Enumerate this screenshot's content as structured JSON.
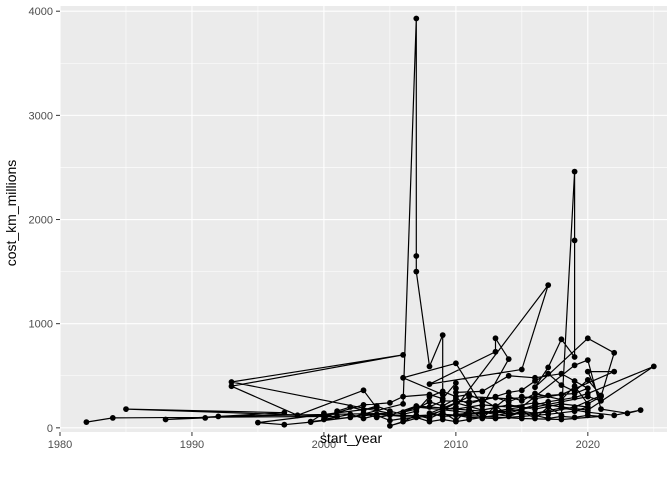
{
  "chart_data": {
    "type": "line",
    "theme": "ggplot2 grey panel with white gridlines",
    "xlabel": "start_year",
    "ylabel": "cost_km_millions",
    "xlim": [
      1980,
      2026
    ],
    "ylim": [
      -40,
      4050
    ],
    "x_ticks": [
      "1980",
      "1990",
      "2000",
      "2010",
      "2020"
    ],
    "y_ticks": [
      "0",
      "1000",
      "2000",
      "3000",
      "4000"
    ],
    "x_tick_values": [
      1980,
      1990,
      2000,
      2010,
      2020
    ],
    "y_tick_values": [
      0,
      1000,
      2000,
      3000,
      4000
    ],
    "grid": true,
    "legend": "none",
    "colors": {
      "panel": "#ebebeb",
      "grid": "#ffffff",
      "mark": "#000000",
      "tick_text": "#4d4d4d"
    },
    "markers": "points connected by a single black path in data order",
    "series": [
      {
        "values": [
          [
            1982,
            55
          ],
          [
            1984,
            95
          ],
          [
            2001,
            110
          ],
          [
            1985,
            180
          ],
          [
            1997,
            145
          ],
          [
            1988,
            80
          ],
          [
            1991,
            95
          ],
          [
            1992,
            110
          ],
          [
            2005,
            140
          ],
          [
            1993,
            440
          ],
          [
            2006,
            700
          ],
          [
            1993,
            400
          ],
          [
            1998,
            120
          ],
          [
            2003,
            360
          ],
          [
            2004,
            190
          ],
          [
            1995,
            50
          ],
          [
            1997,
            30
          ],
          [
            1999,
            55
          ],
          [
            2002,
            100
          ],
          [
            2006,
            230
          ],
          [
            2007,
            3930
          ],
          [
            2007,
            1650
          ],
          [
            2007,
            1500
          ],
          [
            2008,
            590
          ],
          [
            2009,
            890
          ],
          [
            2009,
            320
          ],
          [
            2006,
            480
          ],
          [
            2010,
            620
          ],
          [
            2012,
            210
          ],
          [
            2014,
            660
          ],
          [
            2013,
            860
          ],
          [
            2013,
            730
          ],
          [
            2008,
            420
          ],
          [
            2015,
            560
          ],
          [
            2017,
            1370
          ],
          [
            2010,
            200
          ],
          [
            2005,
            20
          ],
          [
            2006,
            60
          ],
          [
            2007,
            120
          ],
          [
            2008,
            90
          ],
          [
            2009,
            150
          ],
          [
            2010,
            70
          ],
          [
            2011,
            180
          ],
          [
            2012,
            90
          ],
          [
            2013,
            210
          ],
          [
            2014,
            120
          ],
          [
            2015,
            160
          ],
          [
            2016,
            90
          ],
          [
            2017,
            200
          ],
          [
            2018,
            120
          ],
          [
            2019,
            2460
          ],
          [
            2019,
            1800
          ],
          [
            2019,
            680
          ],
          [
            2018,
            850
          ],
          [
            2017,
            580
          ],
          [
            2016,
            390
          ],
          [
            2020,
            860
          ],
          [
            2022,
            720
          ],
          [
            2021,
            300
          ],
          [
            2020,
            230
          ],
          [
            2019,
            400
          ],
          [
            2018,
            270
          ],
          [
            2016,
            330
          ],
          [
            2015,
            260
          ],
          [
            2014,
            300
          ],
          [
            2013,
            200
          ],
          [
            2012,
            270
          ],
          [
            2011,
            230
          ],
          [
            2010,
            280
          ],
          [
            2009,
            210
          ],
          [
            2008,
            250
          ],
          [
            2007,
            180
          ],
          [
            2006,
            150
          ],
          [
            2007,
            200
          ],
          [
            2010,
            160
          ],
          [
            2012,
            130
          ],
          [
            2014,
            180
          ],
          [
            2016,
            140
          ],
          [
            2018,
            190
          ],
          [
            2020,
            150
          ],
          [
            2022,
            120
          ],
          [
            2024,
            170
          ],
          [
            2023,
            140
          ],
          [
            2021,
            180
          ],
          [
            2020,
            650
          ],
          [
            2019,
            600
          ],
          [
            2015,
            200
          ],
          [
            2013,
            160
          ],
          [
            2011,
            130
          ],
          [
            2009,
            110
          ],
          [
            2008,
            140
          ],
          [
            2010,
            240
          ],
          [
            2012,
            170
          ],
          [
            2014,
            220
          ],
          [
            2016,
            180
          ],
          [
            2018,
            230
          ],
          [
            2020,
            200
          ],
          [
            2019,
            160
          ],
          [
            2017,
            130
          ],
          [
            2015,
            110
          ],
          [
            2013,
            90
          ],
          [
            2011,
            100
          ],
          [
            2010,
            120
          ],
          [
            2012,
            140
          ],
          [
            2014,
            160
          ],
          [
            2016,
            200
          ],
          [
            2018,
            250
          ],
          [
            2020,
            300
          ],
          [
            2021,
            260
          ],
          [
            2020,
            540
          ],
          [
            2022,
            540
          ],
          [
            2018,
            320
          ],
          [
            2016,
            280
          ],
          [
            2015,
            300
          ],
          [
            2014,
            250
          ],
          [
            2013,
            290
          ],
          [
            2011,
            250
          ],
          [
            2009,
            260
          ],
          [
            2008,
            200
          ],
          [
            2010,
            180
          ],
          [
            2012,
            220
          ],
          [
            2014,
            200
          ],
          [
            2016,
            240
          ],
          [
            2018,
            200
          ],
          [
            2020,
            170
          ],
          [
            2025,
            590
          ],
          [
            2020,
            330
          ],
          [
            2019,
            290
          ],
          [
            2017,
            250
          ],
          [
            2016,
            220
          ],
          [
            2015,
            180
          ],
          [
            2014,
            140
          ],
          [
            2013,
            120
          ],
          [
            2012,
            100
          ],
          [
            2011,
            80
          ],
          [
            2010,
            60
          ],
          [
            2009,
            80
          ],
          [
            2008,
            60
          ],
          [
            2007,
            100
          ],
          [
            2006,
            90
          ],
          [
            2005,
            70
          ],
          [
            2004,
            120
          ],
          [
            2003,
            90
          ],
          [
            2002,
            130
          ],
          [
            2000,
            80
          ],
          [
            2001,
            160
          ],
          [
            2002,
            200
          ],
          [
            2003,
            170
          ],
          [
            2004,
            210
          ],
          [
            2005,
            160
          ],
          [
            2006,
            130
          ],
          [
            2007,
            160
          ],
          [
            2008,
            300
          ],
          [
            2009,
            350
          ],
          [
            2010,
            300
          ],
          [
            2011,
            320
          ],
          [
            2012,
            260
          ],
          [
            2013,
            300
          ],
          [
            2014,
            340
          ],
          [
            2015,
            360
          ],
          [
            2016,
            450
          ],
          [
            2017,
            520
          ],
          [
            2018,
            410
          ],
          [
            2019,
            350
          ],
          [
            2020,
            460
          ],
          [
            2021,
            310
          ],
          [
            2019,
            200
          ],
          [
            2017,
            150
          ],
          [
            2015,
            130
          ],
          [
            2013,
            150
          ],
          [
            2011,
            170
          ],
          [
            2009,
            190
          ],
          [
            2007,
            210
          ],
          [
            2005,
            120
          ],
          [
            2004,
            100
          ],
          [
            2003,
            140
          ],
          [
            2006,
            110
          ],
          [
            2009,
            130
          ],
          [
            2012,
            110
          ],
          [
            2015,
            90
          ],
          [
            2018,
            80
          ],
          [
            2021,
            110
          ],
          [
            2020,
            120
          ],
          [
            2019,
            100
          ],
          [
            2018,
            110
          ],
          [
            2017,
            90
          ],
          [
            2016,
            120
          ],
          [
            2015,
            150
          ],
          [
            2014,
            110
          ],
          [
            2013,
            130
          ],
          [
            2012,
            150
          ],
          [
            2011,
            140
          ],
          [
            2010,
            130
          ],
          [
            2010,
            380
          ],
          [
            2010,
            430
          ],
          [
            2009,
            280
          ],
          [
            2008,
            320
          ],
          [
            2006,
            300
          ],
          [
            2005,
            240
          ],
          [
            2003,
            220
          ],
          [
            2000,
            110
          ],
          [
            2000,
            140
          ],
          [
            1999,
            60
          ],
          [
            2004,
            130
          ],
          [
            2008,
            110
          ],
          [
            2011,
            300
          ],
          [
            2014,
            280
          ],
          [
            2017,
            310
          ],
          [
            2019,
            330
          ],
          [
            2020,
            380
          ],
          [
            2019,
            450
          ],
          [
            2018,
            520
          ],
          [
            2016,
            480
          ],
          [
            2014,
            500
          ],
          [
            2012,
            350
          ],
          [
            2010,
            340
          ]
        ]
      }
    ]
  }
}
